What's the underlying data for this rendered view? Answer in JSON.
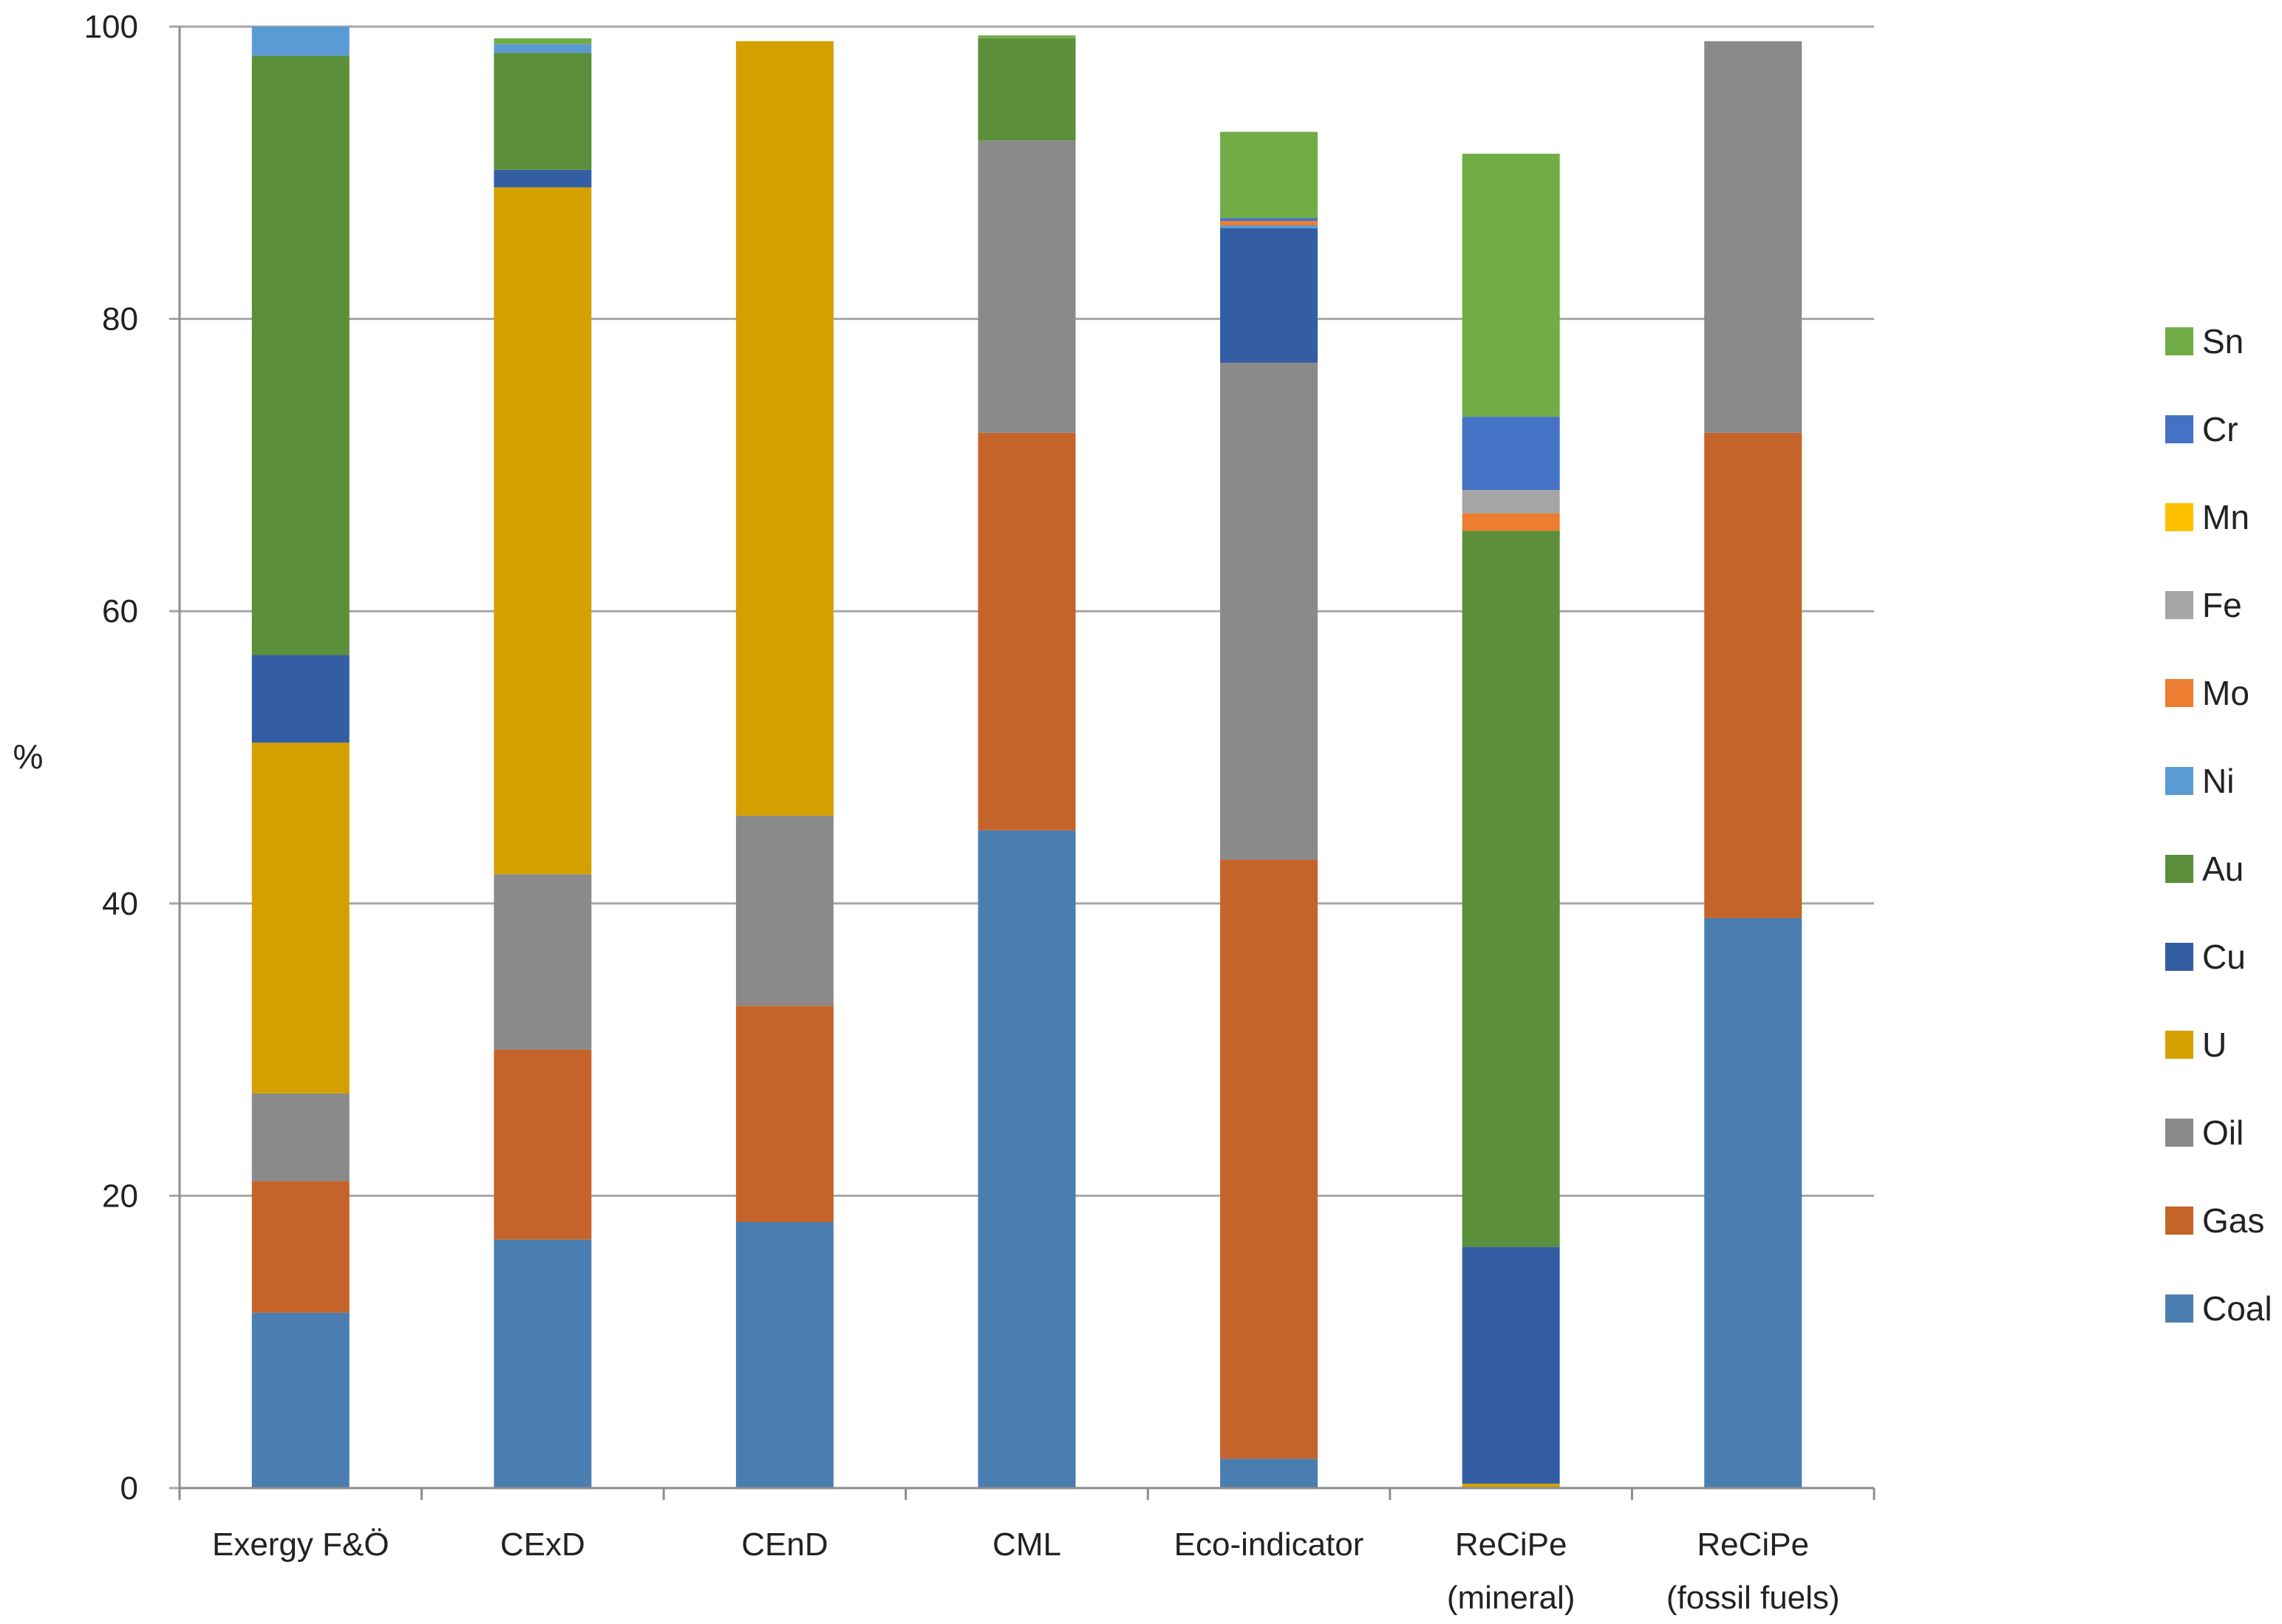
{
  "chart_data": {
    "type": "bar",
    "stacked": true,
    "title": "",
    "xlabel": "",
    "ylabel": "%",
    "ylim": [
      0,
      100
    ],
    "yticks": [
      "0",
      "20",
      "40",
      "60",
      "80",
      "100"
    ],
    "grid": true,
    "legend_position": "right",
    "categories": [
      "Exergy F&Ö",
      "CExD",
      "CEnD",
      "CML",
      "Eco-indicator",
      "ReCiPe (mineral)",
      "ReCiPe (fossil fuels)"
    ],
    "category_lines": [
      [
        "Exergy F&Ö"
      ],
      [
        "CExD"
      ],
      [
        "CEnD"
      ],
      [
        "CML"
      ],
      [
        "Eco-indicator"
      ],
      [
        "ReCiPe",
        "(mineral)"
      ],
      [
        "ReCiPe",
        "(fossil fuels)"
      ]
    ],
    "series": [
      {
        "name": "Coal",
        "color": "#4a7eb0",
        "values": [
          12,
          17,
          18.2,
          45,
          2,
          0,
          39
        ]
      },
      {
        "name": "Gas",
        "color": "#c5642a",
        "values": [
          9,
          13,
          14.8,
          27.2,
          41,
          0,
          33.2
        ]
      },
      {
        "name": "Oil",
        "color": "#8a8a8a",
        "values": [
          6,
          12,
          13,
          20,
          34,
          0,
          26.8
        ]
      },
      {
        "name": "U",
        "color": "#d4a000",
        "values": [
          24,
          47,
          53,
          0,
          0,
          0.3,
          0
        ]
      },
      {
        "name": "Cu",
        "color": "#345ea3",
        "values": [
          6,
          1.2,
          0,
          0,
          9.2,
          16.2,
          0
        ]
      },
      {
        "name": "Au",
        "color": "#5b8f3a",
        "values": [
          41,
          8,
          0,
          7,
          0,
          49,
          0
        ]
      },
      {
        "name": "Ni",
        "color": "#5b9bd5",
        "values": [
          2,
          0.6,
          0,
          0,
          0.2,
          0,
          0
        ]
      },
      {
        "name": "Mo",
        "color": "#ed7d31",
        "values": [
          0,
          0,
          0,
          0,
          0.3,
          1.2,
          0
        ]
      },
      {
        "name": "Fe",
        "color": "#a5a5a5",
        "values": [
          0,
          0,
          0,
          0,
          0,
          1.6,
          0
        ]
      },
      {
        "name": "Mn",
        "color": "#ffc000",
        "values": [
          0,
          0,
          0,
          0,
          0,
          0,
          0
        ]
      },
      {
        "name": "Cr",
        "color": "#4472c4",
        "values": [
          0,
          0,
          0,
          0,
          0.2,
          5,
          0
        ]
      },
      {
        "name": "Sn",
        "color": "#70ad47",
        "values": [
          0,
          0.4,
          0,
          0.2,
          5.9,
          18,
          0
        ]
      }
    ]
  }
}
